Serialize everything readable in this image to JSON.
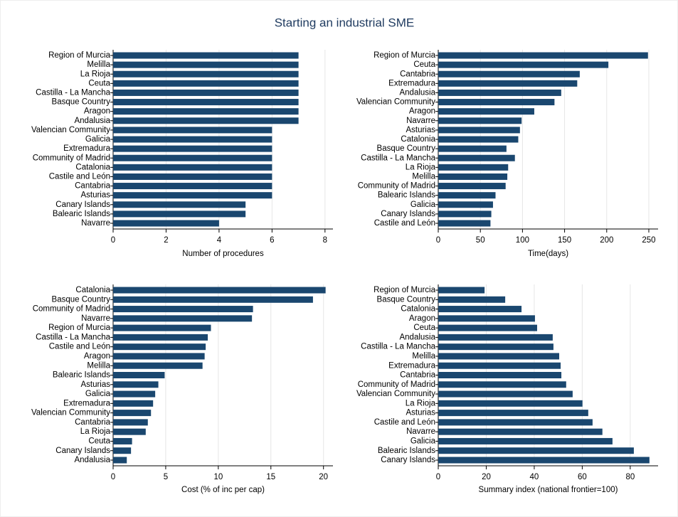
{
  "title": "Starting an industrial SME",
  "chart_data": [
    {
      "type": "bar",
      "orientation": "horizontal",
      "x_label": "Number of procedures",
      "color": "#1a476f",
      "grid": true,
      "categories": [
        "Region of Murcia",
        "Melilla",
        "La Rioja",
        "Ceuta",
        "Castilla - La Mancha",
        "Basque Country",
        "Aragon",
        "Andalusia",
        "Valencian Community",
        "Galicia",
        "Extremadura",
        "Community of Madrid",
        "Catalonia",
        "Castile and León",
        "Cantabria",
        "Asturias",
        "Canary Islands",
        "Balearic Islands",
        "Navarre"
      ],
      "values": [
        7,
        7,
        7,
        7,
        7,
        7,
        7,
        7,
        6,
        6,
        6,
        6,
        6,
        6,
        6,
        6,
        5,
        5,
        4
      ],
      "xlim": [
        0,
        8.3
      ],
      "xticks": [
        0,
        2,
        4,
        6,
        8
      ]
    },
    {
      "type": "bar",
      "orientation": "horizontal",
      "x_label": "Time(days)",
      "color": "#1a476f",
      "grid": true,
      "categories": [
        "Region of Murcia",
        "Ceuta",
        "Cantabria",
        "Extremadura",
        "Andalusia",
        "Valencian Community",
        "Aragon",
        "Navarre",
        "Asturias",
        "Catalonia",
        "Basque Country",
        "Castilla - La Mancha",
        "La Rioja",
        "Melilla",
        "Community of Madrid",
        "Balearic Islands",
        "Galicia",
        "Canary Islands",
        "Castile and León"
      ],
      "values": [
        249,
        202,
        168,
        165,
        146,
        138,
        114,
        99,
        97,
        95,
        81,
        91,
        83,
        82,
        80,
        68,
        65,
        63,
        62
      ],
      "xlim": [
        0,
        261
      ],
      "xticks": [
        0,
        50,
        100,
        150,
        200,
        250
      ]
    },
    {
      "type": "bar",
      "orientation": "horizontal",
      "x_label": "Cost (% of inc per cap)",
      "color": "#1a476f",
      "grid": true,
      "categories": [
        "Catalonia",
        "Basque Country",
        "Community of Madrid",
        "Navarre",
        "Region of Murcia",
        "Castilla - La Mancha",
        "Castile and León",
        "Aragon",
        "Melilla",
        "Balearic Islands",
        "Asturias",
        "Galicia",
        "Extremadura",
        "Valencian Community",
        "Cantabria",
        "La Rioja",
        "Ceuta",
        "Canary Islands",
        "Andalusia"
      ],
      "values": [
        20.2,
        19.0,
        13.3,
        13.2,
        9.3,
        9.0,
        8.8,
        8.7,
        8.5,
        4.9,
        4.3,
        4.0,
        3.8,
        3.6,
        3.3,
        3.1,
        1.8,
        1.7,
        1.3
      ],
      "xlim": [
        0,
        20.9
      ],
      "xticks": [
        0,
        5,
        10,
        15,
        20
      ]
    },
    {
      "type": "bar",
      "orientation": "horizontal",
      "x_label": "Summary index (national frontier=100)",
      "color": "#1a476f",
      "grid": true,
      "categories": [
        "Region of Murcia",
        "Basque Country",
        "Catalonia",
        "Aragon",
        "Ceuta",
        "Andalusia",
        "Castilla - La Mancha",
        "Melilla",
        "Extremadura",
        "Cantabria",
        "Community of Madrid",
        "Valencian Community",
        "La Rioja",
        "Asturias",
        "Castile and León",
        "Navarre",
        "Galicia",
        "Balearic Islands",
        "Canary Islands"
      ],
      "values": [
        19.3,
        27.9,
        34.7,
        40.3,
        41.2,
        47.7,
        48.0,
        50.4,
        51.0,
        51.3,
        53.3,
        56.0,
        60.1,
        62.5,
        64.3,
        68.4,
        72.6,
        81.5,
        88.0
      ],
      "xlim": [
        0,
        91.6
      ],
      "xticks": [
        0,
        20,
        40,
        60,
        80
      ]
    }
  ]
}
